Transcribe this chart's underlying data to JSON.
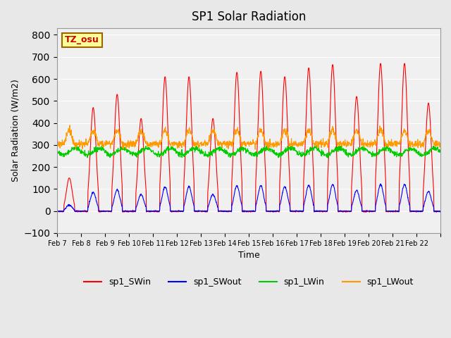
{
  "title": "SP1 Solar Radiation",
  "xlabel": "Time",
  "ylabel": "Solar Radiation (W/m2)",
  "ylim": [
    -100,
    830
  ],
  "yticks": [
    -100,
    0,
    100,
    200,
    300,
    400,
    500,
    600,
    700,
    800
  ],
  "date_labels": [
    "Feb 7",
    "Feb 8",
    "Feb 9",
    "Feb 10",
    "Feb 11",
    "Feb 12",
    "Feb 13",
    "Feb 14",
    "Feb 15",
    "Feb 16",
    "Feb 17",
    "Feb 18",
    "Feb 19",
    "Feb 20",
    "Feb 21",
    "Feb 22",
    ""
  ],
  "colors": {
    "sp1_SWin": "#ff0000",
    "sp1_SWout": "#0000ff",
    "sp1_LWin": "#00cc00",
    "sp1_LWout": "#ff9900"
  },
  "bg_color": "#e8e8e8",
  "plot_bg": "#f0f0f0",
  "tz_label": "TZ_osu",
  "tz_box_color": "#ffff99",
  "tz_text_color": "#cc0000",
  "tz_border_color": "#996600",
  "legend_labels": [
    "sp1_SWin",
    "sp1_SWout",
    "sp1_LWin",
    "sp1_LWout"
  ],
  "n_days": 16,
  "hours_per_day": 24,
  "dt_hours": 0.25,
  "day_sw_peaks": [
    150,
    470,
    530,
    420,
    610,
    610,
    420,
    630,
    635,
    610,
    650,
    665,
    520,
    670,
    670,
    490
  ]
}
